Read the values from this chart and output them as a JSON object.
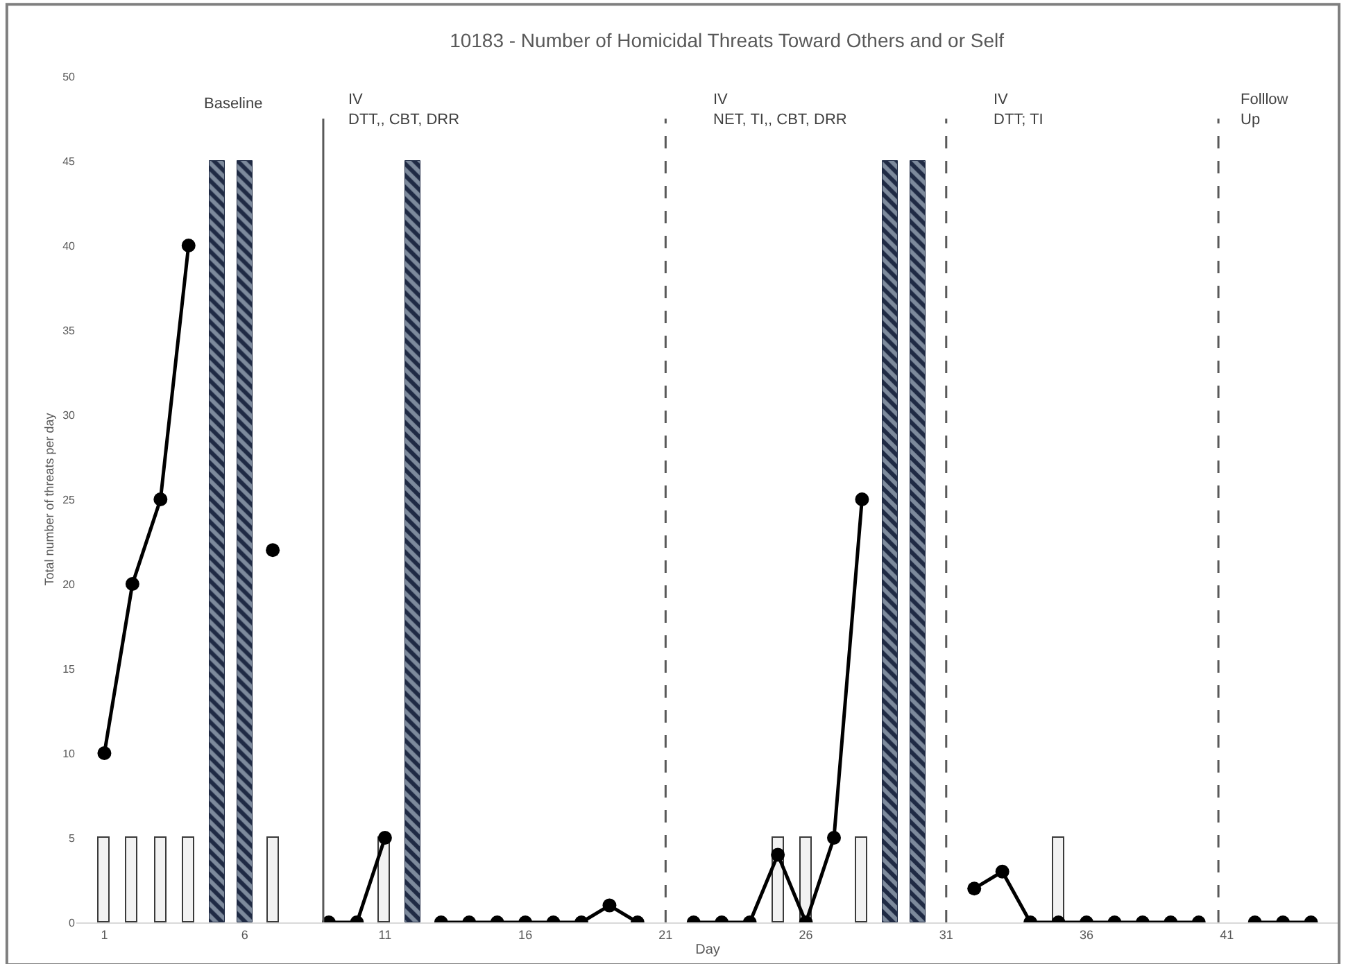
{
  "chart_data": {
    "type": "bar",
    "title": "10183 - Number of Homicidal Threats Toward Others and or Self",
    "xlabel": "Day",
    "ylabel": "Total number of threats per day",
    "x": [
      1,
      2,
      3,
      4,
      5,
      6,
      7,
      8,
      9,
      10,
      11,
      12,
      13,
      14,
      15,
      16,
      17,
      18,
      19,
      20,
      21,
      22,
      23,
      24,
      25,
      26,
      27,
      28,
      29,
      30,
      31,
      32,
      33,
      34,
      35,
      36,
      37,
      38,
      39,
      40,
      41,
      42,
      43,
      44
    ],
    "series": [
      {
        "color": "#f2f2f2",
        "x": [
          1,
          2,
          3,
          4,
          7,
          11,
          25,
          26,
          28,
          35
        ],
        "values": [
          5,
          5,
          5,
          5,
          5,
          5,
          5,
          5,
          5,
          5
        ]
      },
      {
        "type": "bar",
        "color": "#1f2a44",
        "x": [
          5,
          6,
          12,
          29,
          30
        ],
        "values": [
          45,
          45,
          45,
          45,
          45
        ]
      },
      {
        "type": "line",
        "color": "#000000",
        "marker": "circle",
        "values": [
          10,
          20,
          25,
          40,
          null,
          null,
          22,
          null,
          0,
          0,
          5,
          null,
          0,
          0,
          0,
          0,
          0,
          0,
          1,
          0,
          null,
          0,
          0,
          0,
          4,
          0,
          5,
          25,
          null,
          null,
          null,
          2,
          3,
          0,
          0,
          0,
          0,
          0,
          0,
          0,
          null,
          0,
          0,
          0
        ]
      }
    ],
    "xlim": [
      0,
      45
    ],
    "xticks": [
      1,
      6,
      11,
      16,
      21,
      26,
      31,
      36,
      41
    ],
    "ylim": [
      0,
      50
    ],
    "yticks": [
      0,
      5,
      10,
      15,
      20,
      25,
      30,
      35,
      40,
      45,
      50
    ],
    "ref_lines": [
      {
        "axis": "x",
        "value": 8.8,
        "line_style": "solid",
        "color": "#595959"
      },
      {
        "axis": "x",
        "value": 21,
        "line_style": "dashed",
        "color": "#595959"
      },
      {
        "axis": "x",
        "value": 31,
        "line_style": "dashed",
        "color": "#595959"
      },
      {
        "axis": "x",
        "value": 40.7,
        "line_style": "dashed",
        "color": "#595959"
      }
    ],
    "annotations": [
      "Baseline",
      "IV\nDTT,, CBT, DRR",
      "IV\nNET, TI,, CBT, DRR",
      "IV\nDTT; TI",
      "Folllow\nUp"
    ]
  }
}
